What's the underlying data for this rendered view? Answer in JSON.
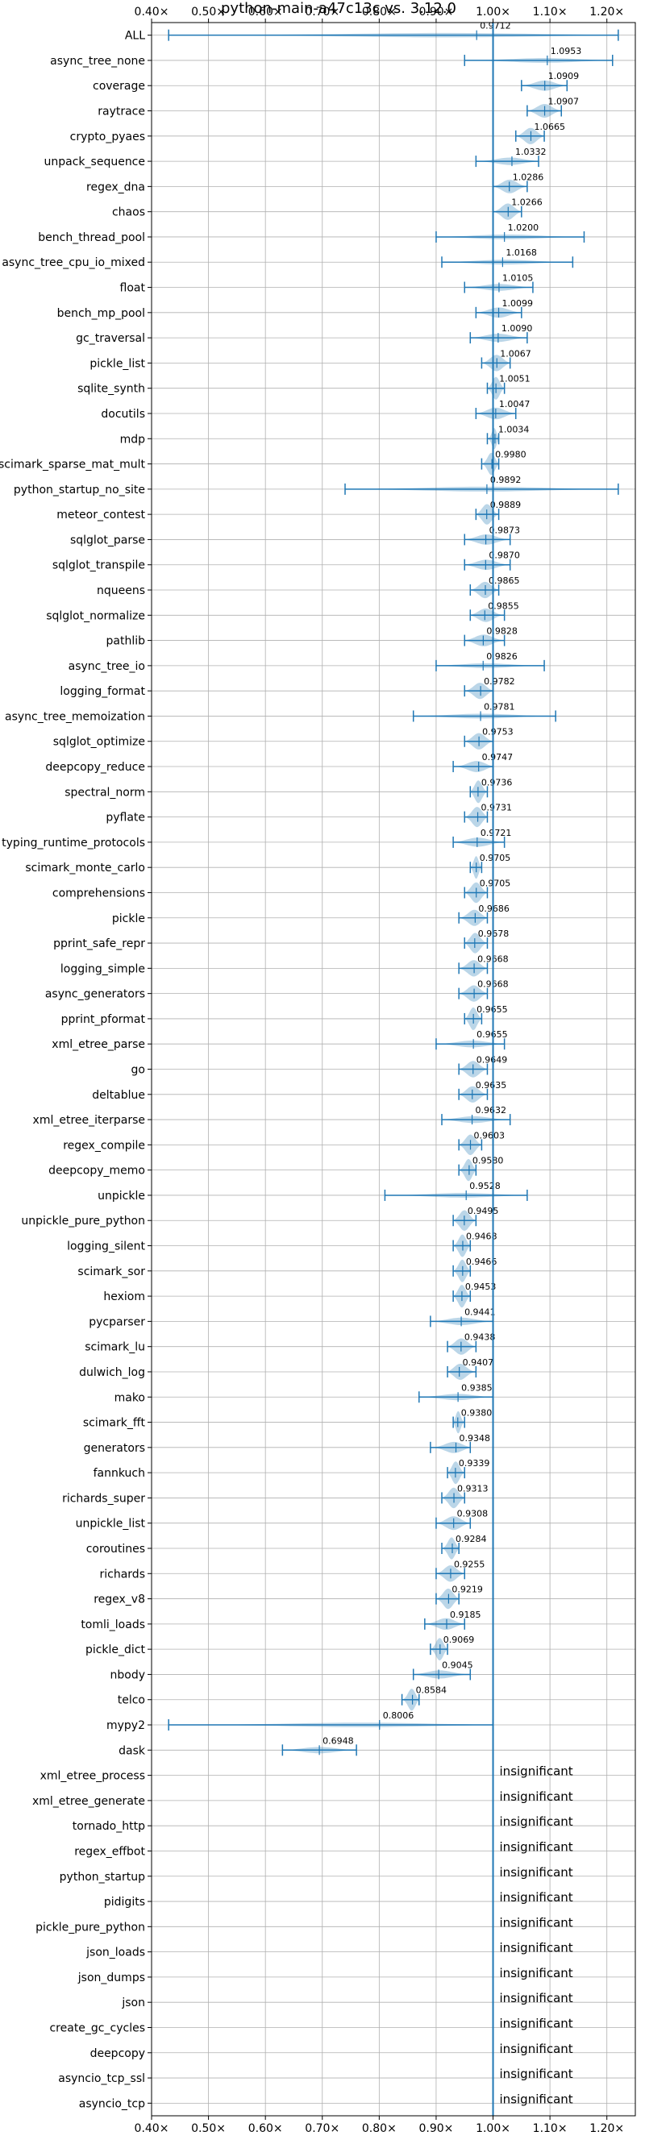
{
  "chart_data": {
    "type": "violin",
    "title": "python-main-a47c13c vs. 3.12.0",
    "x_axis": {
      "min": 0.4,
      "max": 1.25,
      "tick_values": [
        0.4,
        0.5,
        0.6,
        0.7,
        0.8,
        0.9,
        1.0,
        1.1,
        1.2
      ],
      "tick_labels": [
        "0.40×",
        "0.50×",
        "0.60×",
        "0.70×",
        "0.80×",
        "0.90×",
        "1.00×",
        "1.10×",
        "1.20×"
      ],
      "reference_line": 1.0
    },
    "grid": true,
    "insignificant_label": "insignificant",
    "benchmarks": [
      {
        "name": "ALL",
        "mean": 0.9712,
        "min": 0.43,
        "max": 1.22
      },
      {
        "name": "async_tree_none",
        "mean": 1.0953,
        "min": 0.95,
        "max": 1.21
      },
      {
        "name": "coverage",
        "mean": 1.0909,
        "min": 1.05,
        "max": 1.13
      },
      {
        "name": "raytrace",
        "mean": 1.0907,
        "min": 1.06,
        "max": 1.12
      },
      {
        "name": "crypto_pyaes",
        "mean": 1.0665,
        "min": 1.04,
        "max": 1.09
      },
      {
        "name": "unpack_sequence",
        "mean": 1.0332,
        "min": 0.97,
        "max": 1.08
      },
      {
        "name": "regex_dna",
        "mean": 1.0286,
        "min": 1.0,
        "max": 1.06
      },
      {
        "name": "chaos",
        "mean": 1.0266,
        "min": 1.0,
        "max": 1.05
      },
      {
        "name": "bench_thread_pool",
        "mean": 1.02,
        "min": 0.9,
        "max": 1.16
      },
      {
        "name": "async_tree_cpu_io_mixed",
        "mean": 1.0168,
        "min": 0.91,
        "max": 1.14
      },
      {
        "name": "float",
        "mean": 1.0105,
        "min": 0.95,
        "max": 1.07
      },
      {
        "name": "bench_mp_pool",
        "mean": 1.0099,
        "min": 0.97,
        "max": 1.05
      },
      {
        "name": "gc_traversal",
        "mean": 1.009,
        "min": 0.96,
        "max": 1.06
      },
      {
        "name": "pickle_list",
        "mean": 1.0067,
        "min": 0.98,
        "max": 1.03
      },
      {
        "name": "sqlite_synth",
        "mean": 1.0051,
        "min": 0.99,
        "max": 1.02
      },
      {
        "name": "docutils",
        "mean": 1.0047,
        "min": 0.97,
        "max": 1.04
      },
      {
        "name": "mdp",
        "mean": 1.0034,
        "min": 0.99,
        "max": 1.01
      },
      {
        "name": "scimark_sparse_mat_mult",
        "mean": 0.998,
        "min": 0.98,
        "max": 1.01
      },
      {
        "name": "python_startup_no_site",
        "mean": 0.9892,
        "min": 0.74,
        "max": 1.22
      },
      {
        "name": "meteor_contest",
        "mean": 0.9889,
        "min": 0.97,
        "max": 1.01
      },
      {
        "name": "sqlglot_parse",
        "mean": 0.9873,
        "min": 0.95,
        "max": 1.03
      },
      {
        "name": "sqlglot_transpile",
        "mean": 0.987,
        "min": 0.95,
        "max": 1.03
      },
      {
        "name": "nqueens",
        "mean": 0.9865,
        "min": 0.96,
        "max": 1.01
      },
      {
        "name": "sqlglot_normalize",
        "mean": 0.9855,
        "min": 0.96,
        "max": 1.02
      },
      {
        "name": "pathlib",
        "mean": 0.9828,
        "min": 0.95,
        "max": 1.02
      },
      {
        "name": "async_tree_io",
        "mean": 0.9826,
        "min": 0.9,
        "max": 1.09
      },
      {
        "name": "logging_format",
        "mean": 0.9782,
        "min": 0.95,
        "max": 1.0
      },
      {
        "name": "async_tree_memoization",
        "mean": 0.9781,
        "min": 0.86,
        "max": 1.11
      },
      {
        "name": "sqlglot_optimize",
        "mean": 0.9753,
        "min": 0.95,
        "max": 1.0
      },
      {
        "name": "deepcopy_reduce",
        "mean": 0.9747,
        "min": 0.93,
        "max": 1.0
      },
      {
        "name": "spectral_norm",
        "mean": 0.9736,
        "min": 0.96,
        "max": 0.99
      },
      {
        "name": "pyflate",
        "mean": 0.9731,
        "min": 0.95,
        "max": 0.99
      },
      {
        "name": "typing_runtime_protocols",
        "mean": 0.9721,
        "min": 0.93,
        "max": 1.02
      },
      {
        "name": "scimark_monte_carlo",
        "mean": 0.9705,
        "min": 0.96,
        "max": 0.98
      },
      {
        "name": "comprehensions",
        "mean": 0.9705,
        "min": 0.95,
        "max": 0.99
      },
      {
        "name": "pickle",
        "mean": 0.9686,
        "min": 0.94,
        "max": 0.99
      },
      {
        "name": "pprint_safe_repr",
        "mean": 0.9678,
        "min": 0.95,
        "max": 0.99
      },
      {
        "name": "logging_simple",
        "mean": 0.9668,
        "min": 0.94,
        "max": 0.99
      },
      {
        "name": "async_generators",
        "mean": 0.9668,
        "min": 0.94,
        "max": 0.99
      },
      {
        "name": "pprint_pformat",
        "mean": 0.9655,
        "min": 0.95,
        "max": 0.98
      },
      {
        "name": "xml_etree_parse",
        "mean": 0.9655,
        "min": 0.9,
        "max": 1.02
      },
      {
        "name": "go",
        "mean": 0.9649,
        "min": 0.94,
        "max": 0.99
      },
      {
        "name": "deltablue",
        "mean": 0.9635,
        "min": 0.94,
        "max": 0.99
      },
      {
        "name": "xml_etree_iterparse",
        "mean": 0.9632,
        "min": 0.91,
        "max": 1.03
      },
      {
        "name": "regex_compile",
        "mean": 0.9603,
        "min": 0.94,
        "max": 0.98
      },
      {
        "name": "deepcopy_memo",
        "mean": 0.958,
        "min": 0.94,
        "max": 0.97
      },
      {
        "name": "unpickle",
        "mean": 0.9528,
        "min": 0.81,
        "max": 1.06
      },
      {
        "name": "unpickle_pure_python",
        "mean": 0.9495,
        "min": 0.93,
        "max": 0.97
      },
      {
        "name": "logging_silent",
        "mean": 0.9468,
        "min": 0.93,
        "max": 0.96
      },
      {
        "name": "scimark_sor",
        "mean": 0.9466,
        "min": 0.93,
        "max": 0.96
      },
      {
        "name": "hexiom",
        "mean": 0.9453,
        "min": 0.93,
        "max": 0.96
      },
      {
        "name": "pycparser",
        "mean": 0.9441,
        "min": 0.89,
        "max": 1.0
      },
      {
        "name": "scimark_lu",
        "mean": 0.9438,
        "min": 0.92,
        "max": 0.97
      },
      {
        "name": "dulwich_log",
        "mean": 0.9407,
        "min": 0.92,
        "max": 0.97
      },
      {
        "name": "mako",
        "mean": 0.9385,
        "min": 0.87,
        "max": 1.0
      },
      {
        "name": "scimark_fft",
        "mean": 0.938,
        "min": 0.93,
        "max": 0.95
      },
      {
        "name": "generators",
        "mean": 0.9348,
        "min": 0.89,
        "max": 0.96
      },
      {
        "name": "fannkuch",
        "mean": 0.9339,
        "min": 0.92,
        "max": 0.95
      },
      {
        "name": "richards_super",
        "mean": 0.9313,
        "min": 0.91,
        "max": 0.95
      },
      {
        "name": "unpickle_list",
        "mean": 0.9308,
        "min": 0.9,
        "max": 0.96
      },
      {
        "name": "coroutines",
        "mean": 0.9284,
        "min": 0.91,
        "max": 0.94
      },
      {
        "name": "richards",
        "mean": 0.9255,
        "min": 0.9,
        "max": 0.95
      },
      {
        "name": "regex_v8",
        "mean": 0.9219,
        "min": 0.9,
        "max": 0.94
      },
      {
        "name": "tomli_loads",
        "mean": 0.9185,
        "min": 0.88,
        "max": 0.95
      },
      {
        "name": "pickle_dict",
        "mean": 0.9069,
        "min": 0.89,
        "max": 0.92
      },
      {
        "name": "nbody",
        "mean": 0.9045,
        "min": 0.86,
        "max": 0.96
      },
      {
        "name": "telco",
        "mean": 0.8584,
        "min": 0.84,
        "max": 0.87
      },
      {
        "name": "mypy2",
        "mean": 0.8006,
        "min": 0.43,
        "max": 1.0
      },
      {
        "name": "dask",
        "mean": 0.6948,
        "min": 0.63,
        "max": 0.76
      },
      {
        "name": "xml_etree_process",
        "insignificant": true
      },
      {
        "name": "xml_etree_generate",
        "insignificant": true
      },
      {
        "name": "tornado_http",
        "insignificant": true
      },
      {
        "name": "regex_effbot",
        "insignificant": true
      },
      {
        "name": "python_startup",
        "insignificant": true
      },
      {
        "name": "pidigits",
        "insignificant": true
      },
      {
        "name": "pickle_pure_python",
        "insignificant": true
      },
      {
        "name": "json_loads",
        "insignificant": true
      },
      {
        "name": "json_dumps",
        "insignificant": true
      },
      {
        "name": "json",
        "insignificant": true
      },
      {
        "name": "create_gc_cycles",
        "insignificant": true
      },
      {
        "name": "deepcopy",
        "insignificant": true
      },
      {
        "name": "asyncio_tcp_ssl",
        "insignificant": true
      },
      {
        "name": "asyncio_tcp",
        "insignificant": true
      }
    ],
    "colors": {
      "violin": "#1f77b4",
      "grid": "#b0b0b0",
      "axis": "#000000"
    }
  }
}
